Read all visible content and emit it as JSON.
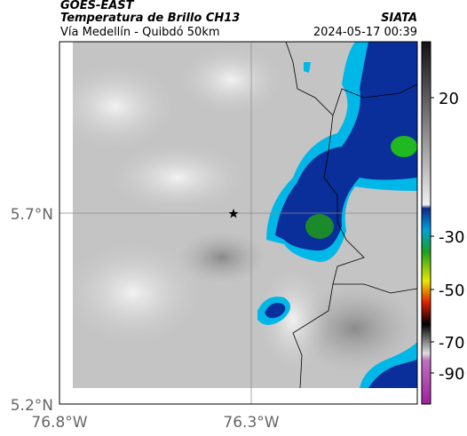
{
  "header": {
    "title": "GOES-EAST",
    "subtitle": "Temperatura de Brillo CH13",
    "route": "Vía Medellín - Quibdó 50km",
    "source": "SIATA",
    "datetime": "2024-05-17 00:39"
  },
  "axes": {
    "lat_labels": [
      "5.7°N",
      "5.2°N"
    ],
    "lon_labels": [
      "76.8°W",
      "76.3°W"
    ]
  },
  "colorbar": {
    "ticks": [
      20,
      -30,
      -50,
      -70,
      -90
    ]
  }
}
